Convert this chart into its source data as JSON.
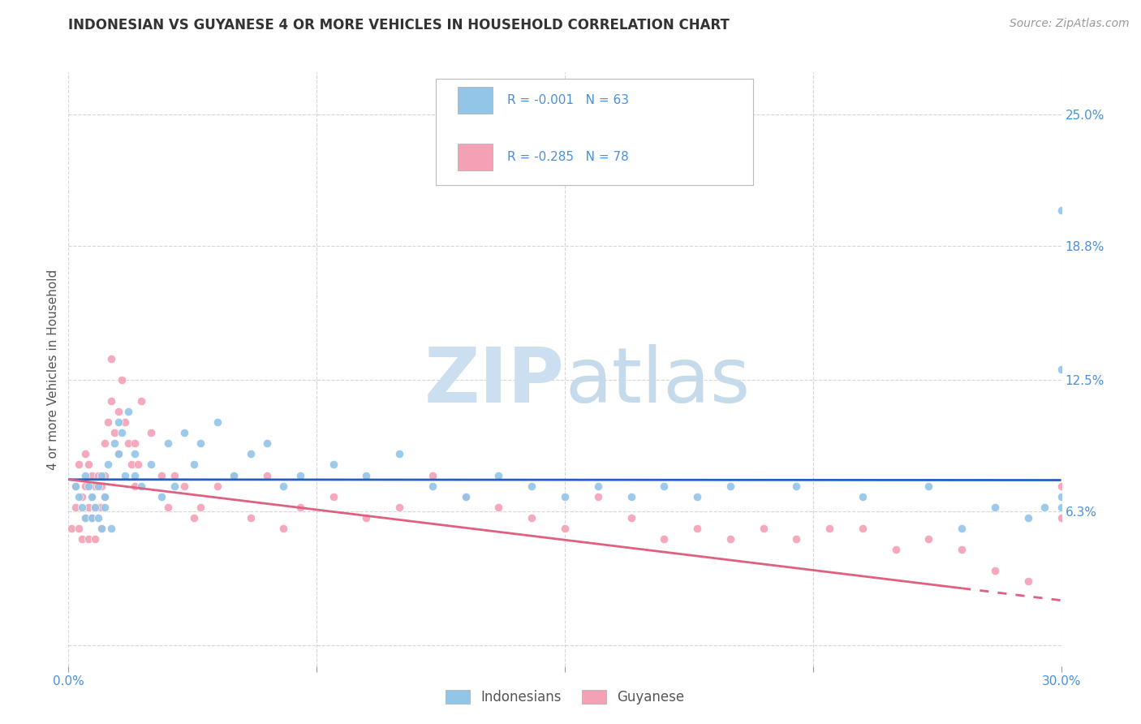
{
  "title": "INDONESIAN VS GUYANESE 4 OR MORE VEHICLES IN HOUSEHOLD CORRELATION CHART",
  "source_text": "Source: ZipAtlas.com",
  "ylabel": "4 or more Vehicles in Household",
  "xlim": [
    0.0,
    30.0
  ],
  "ylim": [
    -1.0,
    27.0
  ],
  "yticks": [
    0.0,
    6.3,
    12.5,
    18.8,
    25.0
  ],
  "ytick_labels": [
    "",
    "6.3%",
    "12.5%",
    "18.8%",
    "25.0%"
  ],
  "xtick_positions": [
    0.0,
    7.5,
    15.0,
    22.5,
    30.0
  ],
  "xtick_labels": [
    "0.0%",
    "",
    "",
    "",
    "30.0%"
  ],
  "legend_line1": "R = -0.001   N = 63",
  "legend_line2": "R = -0.285   N = 78",
  "legend_label1": "Indonesians",
  "legend_label2": "Guyanese",
  "indonesian_color": "#92c5e8",
  "guyanese_color": "#f4a0b5",
  "indonesian_line_color": "#2060c0",
  "guyanese_line_color": "#e06080",
  "indonesian_x": [
    0.2,
    0.3,
    0.4,
    0.5,
    0.5,
    0.6,
    0.7,
    0.7,
    0.8,
    0.9,
    0.9,
    1.0,
    1.0,
    1.1,
    1.1,
    1.2,
    1.3,
    1.4,
    1.5,
    1.5,
    1.6,
    1.7,
    1.8,
    2.0,
    2.0,
    2.2,
    2.5,
    2.8,
    3.0,
    3.2,
    3.5,
    3.8,
    4.0,
    4.5,
    5.0,
    5.5,
    6.0,
    6.5,
    7.0,
    8.0,
    9.0,
    10.0,
    11.0,
    12.0,
    13.0,
    14.0,
    15.0,
    16.0,
    17.0,
    18.0,
    19.0,
    20.0,
    22.0,
    24.0,
    26.0,
    27.0,
    28.0,
    29.0,
    29.5,
    30.0,
    30.0,
    30.0,
    30.0
  ],
  "indonesian_y": [
    7.5,
    7.0,
    6.5,
    6.0,
    8.0,
    7.5,
    7.0,
    6.0,
    6.5,
    7.5,
    6.0,
    8.0,
    5.5,
    7.0,
    6.5,
    8.5,
    5.5,
    9.5,
    9.0,
    10.5,
    10.0,
    8.0,
    11.0,
    9.0,
    8.0,
    7.5,
    8.5,
    7.0,
    9.5,
    7.5,
    10.0,
    8.5,
    9.5,
    10.5,
    8.0,
    9.0,
    9.5,
    7.5,
    8.0,
    8.5,
    8.0,
    9.0,
    7.5,
    7.0,
    8.0,
    7.5,
    7.0,
    7.5,
    7.0,
    7.5,
    7.0,
    7.5,
    7.5,
    7.0,
    7.5,
    5.5,
    6.5,
    6.0,
    6.5,
    13.0,
    6.5,
    20.5,
    7.0
  ],
  "guyanese_x": [
    0.1,
    0.2,
    0.2,
    0.3,
    0.3,
    0.4,
    0.4,
    0.5,
    0.5,
    0.5,
    0.6,
    0.6,
    0.6,
    0.7,
    0.7,
    0.7,
    0.8,
    0.8,
    0.8,
    0.9,
    0.9,
    1.0,
    1.0,
    1.0,
    1.1,
    1.1,
    1.1,
    1.2,
    1.3,
    1.3,
    1.4,
    1.5,
    1.5,
    1.6,
    1.7,
    1.8,
    1.9,
    2.0,
    2.0,
    2.1,
    2.2,
    2.5,
    2.8,
    3.0,
    3.2,
    3.5,
    3.8,
    4.0,
    4.5,
    5.0,
    5.5,
    6.0,
    6.5,
    7.0,
    8.0,
    9.0,
    10.0,
    11.0,
    12.0,
    13.0,
    14.0,
    15.0,
    16.0,
    17.0,
    18.0,
    19.0,
    20.0,
    21.0,
    22.0,
    23.0,
    24.0,
    25.0,
    26.0,
    27.0,
    28.0,
    29.0,
    30.0,
    30.0
  ],
  "guyanese_y": [
    5.5,
    7.5,
    6.5,
    8.5,
    5.5,
    7.0,
    5.0,
    9.0,
    7.5,
    6.0,
    8.5,
    6.5,
    5.0,
    8.0,
    7.0,
    6.0,
    7.5,
    6.5,
    5.0,
    8.0,
    6.5,
    7.5,
    6.5,
    5.5,
    9.5,
    8.0,
    7.0,
    10.5,
    13.5,
    11.5,
    10.0,
    11.0,
    9.0,
    12.5,
    10.5,
    9.5,
    8.5,
    7.5,
    9.5,
    8.5,
    11.5,
    10.0,
    8.0,
    6.5,
    8.0,
    7.5,
    6.0,
    6.5,
    7.5,
    8.0,
    6.0,
    8.0,
    5.5,
    6.5,
    7.0,
    6.0,
    6.5,
    8.0,
    7.0,
    6.5,
    6.0,
    5.5,
    7.0,
    6.0,
    5.0,
    5.5,
    5.0,
    5.5,
    5.0,
    5.5,
    5.5,
    4.5,
    5.0,
    4.5,
    3.5,
    3.0,
    7.5,
    6.0
  ],
  "indonesian_trend_slope": -0.001,
  "indonesian_trend_intercept": 7.8,
  "guyanese_trend_slope": -0.19,
  "guyanese_trend_intercept": 7.8,
  "background_color": "#ffffff",
  "grid_color": "#cccccc",
  "title_fontsize": 12,
  "source_fontsize": 10,
  "tick_fontsize": 11,
  "ylabel_fontsize": 11,
  "watermark_zip_color": "#c8ddf0",
  "watermark_atlas_color": "#b8cce4"
}
